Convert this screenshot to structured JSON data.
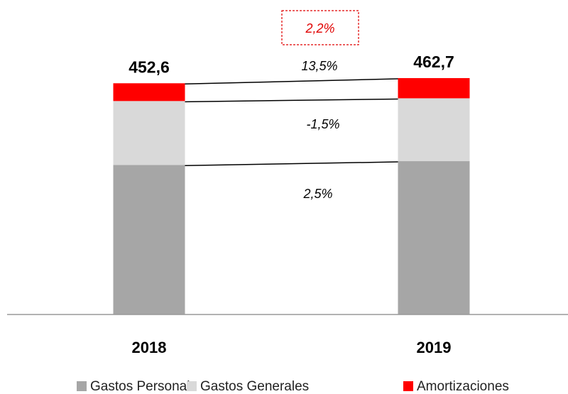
{
  "chart_data": {
    "type": "stacked_bar",
    "categories": [
      "2018",
      "2019"
    ],
    "series": [
      {
        "name": "Gastos Personal",
        "color": "#a6a6a6",
        "values": [
          292.8,
          300.1
        ]
      },
      {
        "name": "Gastos Generales",
        "color": "#d9d9d9",
        "values": [
          125.0,
          123.1
        ]
      },
      {
        "name": "Amortizaciones",
        "color": "#ff0000",
        "values": [
          34.8,
          39.5
        ]
      }
    ],
    "totals": {
      "values": [
        452.6,
        462.7
      ],
      "labels": [
        "452,6",
        "462,7"
      ]
    },
    "growth_labels": {
      "series": [
        "2,5%",
        "-1,5%",
        "13,5%"
      ],
      "total": "2,2%"
    },
    "ylim": [
      0,
      560
    ]
  }
}
